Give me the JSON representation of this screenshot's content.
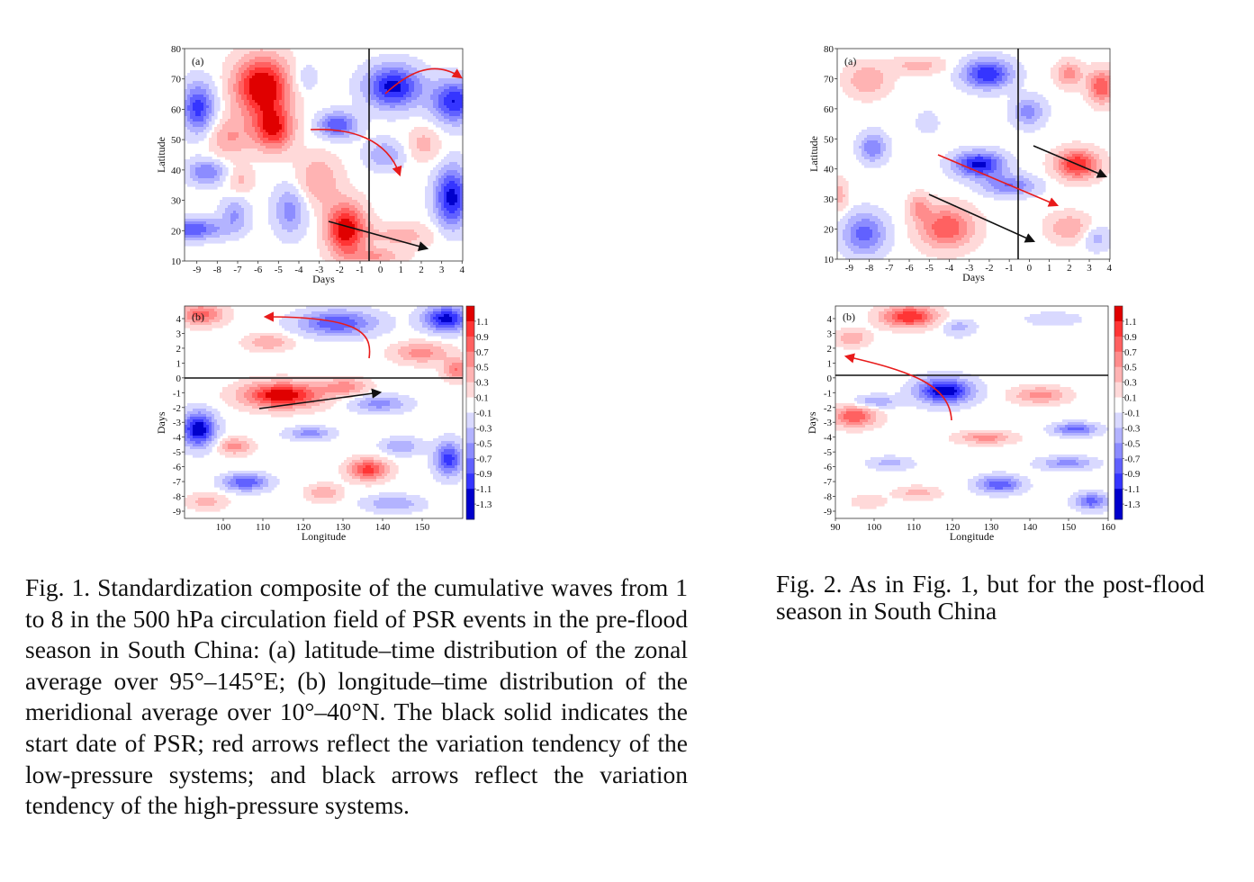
{
  "colors": {
    "red_shades": [
      "#ffd9d9",
      "#ffb3b3",
      "#ff8c8c",
      "#ff6161",
      "#ff3535",
      "#e00000"
    ],
    "blue_shades": [
      "#d9d9ff",
      "#b3b3ff",
      "#8c8cff",
      "#6161ff",
      "#3535ff",
      "#0000cc"
    ],
    "red_arrow": "#e81b1b",
    "black_arrow": "#111111"
  },
  "figure1": {
    "panel_a": {
      "label": "(a)",
      "ylabel": "Latitude",
      "xlabel": "Days",
      "yticks": [
        "80",
        "70",
        "60",
        "50",
        "40",
        "30",
        "20",
        "10"
      ],
      "xticks": [
        "-9",
        "-8",
        "-7",
        "-6",
        "-5",
        "-4",
        "-3",
        "-2",
        "-1",
        "0",
        "1",
        "2",
        "3",
        "4"
      ]
    },
    "panel_b": {
      "label": "(b)",
      "ylabel": "Days",
      "xlabel": "Longitude",
      "yticks": [
        "4",
        "3",
        "2",
        "1",
        "0",
        "-1",
        "-2",
        "-3",
        "-4",
        "-5",
        "-6",
        "-7",
        "-8",
        "-9"
      ],
      "xticks": [
        "100",
        "110",
        "120",
        "130",
        "140",
        "150"
      ]
    },
    "colorbar": [
      "1.1",
      "0.9",
      "0.7",
      "0.5",
      "0.3",
      "0.1",
      "-0.1",
      "-0.3",
      "-0.5",
      "-0.7",
      "-0.9",
      "-1.1",
      "-1.3"
    ],
    "caption": "Fig. 1. Standardization composite of the cumulative waves from 1 to 8 in the 500 hPa circulation field of PSR events in the pre-flood season in South China: (a) latitude–time distribution of the zonal average over 95°–145°E; (b) longitude–time distribution of the meridional average over 10°–40°N. The black solid indicates the start date of PSR; red arrows reflect the variation tendency of the low-pressure systems; and black arrows reflect the variation tendency of the high-pressure systems."
  },
  "figure2": {
    "panel_a": {
      "label": "(a)",
      "ylabel": "Latitude",
      "xlabel": "Days",
      "yticks": [
        "80",
        "70",
        "60",
        "50",
        "40",
        "30",
        "20",
        "10"
      ],
      "xticks": [
        "-9",
        "-8",
        "-7",
        "-6",
        "-5",
        "-4",
        "-3",
        "-2",
        "-1",
        "0",
        "1",
        "2",
        "3",
        "4"
      ]
    },
    "panel_b": {
      "label": "(b)",
      "ylabel": "Days",
      "xlabel": "Longitude",
      "yticks": [
        "4",
        "3",
        "2",
        "1",
        "0",
        "-1",
        "-2",
        "-3",
        "-4",
        "-5",
        "-6",
        "-7",
        "-8",
        "-9"
      ],
      "xticks": [
        "90",
        "100",
        "110",
        "120",
        "130",
        "140",
        "150",
        "160"
      ]
    },
    "colorbar": [
      "1.1",
      "0.9",
      "0.7",
      "0.5",
      "0.3",
      "0.1",
      "-0.1",
      "-0.3",
      "-0.5",
      "-0.7",
      "-0.9",
      "-1.1",
      "-1.3"
    ],
    "caption": "Fig. 2. As in Fig. 1, but for the post-flood season in South China"
  }
}
